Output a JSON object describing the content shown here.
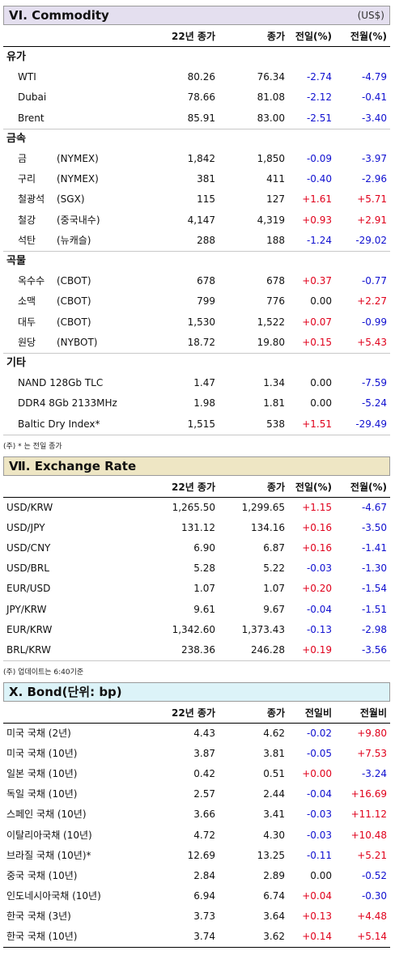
{
  "commodity": {
    "title": "VI. Commodity",
    "unit": "(US$)",
    "headers": [
      "22년 종가",
      "종가",
      "전일(%)",
      "전월(%)"
    ],
    "categories": [
      {
        "label": "유가",
        "rows": [
          {
            "name": "WTI",
            "exchange": "",
            "y22": "80.26",
            "close": "76.34",
            "d1": "-2.74",
            "d1c": "neg",
            "m1": "-4.79",
            "m1c": "neg"
          },
          {
            "name": "Dubai",
            "exchange": "",
            "y22": "78.66",
            "close": "81.08",
            "d1": "-2.12",
            "d1c": "neg",
            "m1": "-0.41",
            "m1c": "neg"
          },
          {
            "name": "Brent",
            "exchange": "",
            "y22": "85.91",
            "close": "83.00",
            "d1": "-2.51",
            "d1c": "neg",
            "m1": "-3.40",
            "m1c": "neg"
          }
        ]
      },
      {
        "label": "금속",
        "rows": [
          {
            "name": "금",
            "exchange": "(NYMEX)",
            "y22": "1,842",
            "close": "1,850",
            "d1": "-0.09",
            "d1c": "neg",
            "m1": "-3.97",
            "m1c": "neg"
          },
          {
            "name": "구리",
            "exchange": "(NYMEX)",
            "y22": "381",
            "close": "411",
            "d1": "-0.40",
            "d1c": "neg",
            "m1": "-2.96",
            "m1c": "neg"
          },
          {
            "name": "철광석",
            "exchange": "(SGX)",
            "y22": "115",
            "close": "127",
            "d1": "+1.61",
            "d1c": "pos",
            "m1": "+5.71",
            "m1c": "pos"
          },
          {
            "name": "철강",
            "exchange": "(중국내수)",
            "y22": "4,147",
            "close": "4,319",
            "d1": "+0.93",
            "d1c": "pos",
            "m1": "+2.91",
            "m1c": "pos"
          },
          {
            "name": "석탄",
            "exchange": "(뉴캐슬)",
            "y22": "288",
            "close": "188",
            "d1": "-1.24",
            "d1c": "neg",
            "m1": "-29.02",
            "m1c": "neg"
          }
        ]
      },
      {
        "label": "곡물",
        "rows": [
          {
            "name": "옥수수",
            "exchange": "(CBOT)",
            "y22": "678",
            "close": "678",
            "d1": "+0.37",
            "d1c": "pos",
            "m1": "-0.77",
            "m1c": "neg"
          },
          {
            "name": "소맥",
            "exchange": "(CBOT)",
            "y22": "799",
            "close": "776",
            "d1": "0.00",
            "d1c": "zero",
            "m1": "+2.27",
            "m1c": "pos"
          },
          {
            "name": "대두",
            "exchange": "(CBOT)",
            "y22": "1,530",
            "close": "1,522",
            "d1": "+0.07",
            "d1c": "pos",
            "m1": "-0.99",
            "m1c": "neg"
          },
          {
            "name": "원당",
            "exchange": "(NYBOT)",
            "y22": "18.72",
            "close": "19.80",
            "d1": "+0.15",
            "d1c": "pos",
            "m1": "+5.43",
            "m1c": "pos"
          }
        ]
      },
      {
        "label": "기타",
        "rows": [
          {
            "name": "NAND 128Gb TLC",
            "exchange": "",
            "y22": "1.47",
            "close": "1.34",
            "d1": "0.00",
            "d1c": "zero",
            "m1": "-7.59",
            "m1c": "neg"
          },
          {
            "name": "DDR4 8Gb 2133MHz",
            "exchange": "",
            "y22": "1.98",
            "close": "1.81",
            "d1": "0.00",
            "d1c": "zero",
            "m1": "-5.24",
            "m1c": "neg"
          },
          {
            "name": "Baltic Dry Index*",
            "exchange": "",
            "y22": "1,515",
            "close": "538",
            "d1": "+1.51",
            "d1c": "pos",
            "m1": "-29.49",
            "m1c": "neg"
          }
        ]
      }
    ],
    "note": "(주) * 는 전일 종가"
  },
  "exchange": {
    "title": "Ⅶ. Exchange Rate",
    "headers": [
      "22년 종가",
      "종가",
      "전일(%)",
      "전월(%)"
    ],
    "rows": [
      {
        "name": "USD/KRW",
        "y22": "1,265.50",
        "close": "1,299.65",
        "d1": "+1.15",
        "d1c": "pos",
        "m1": "-4.67",
        "m1c": "neg"
      },
      {
        "name": "USD/JPY",
        "y22": "131.12",
        "close": "134.16",
        "d1": "+0.16",
        "d1c": "pos",
        "m1": "-3.50",
        "m1c": "neg"
      },
      {
        "name": "USD/CNY",
        "y22": "6.90",
        "close": "6.87",
        "d1": "+0.16",
        "d1c": "pos",
        "m1": "-1.41",
        "m1c": "neg"
      },
      {
        "name": "USD/BRL",
        "y22": "5.28",
        "close": "5.22",
        "d1": "-0.03",
        "d1c": "neg",
        "m1": "-1.30",
        "m1c": "neg"
      },
      {
        "name": "EUR/USD",
        "y22": "1.07",
        "close": "1.07",
        "d1": "+0.20",
        "d1c": "pos",
        "m1": "-1.54",
        "m1c": "neg"
      },
      {
        "name": "JPY/KRW",
        "y22": "9.61",
        "close": "9.67",
        "d1": "-0.04",
        "d1c": "neg",
        "m1": "-1.51",
        "m1c": "neg"
      },
      {
        "name": "EUR/KRW",
        "y22": "1,342.60",
        "close": "1,373.43",
        "d1": "-0.13",
        "d1c": "neg",
        "m1": "-2.98",
        "m1c": "neg"
      },
      {
        "name": "BRL/KRW",
        "y22": "238.36",
        "close": "246.28",
        "d1": "+0.19",
        "d1c": "pos",
        "m1": "-3.56",
        "m1c": "neg"
      }
    ],
    "note": "(주) 업데이트는 6:40기준"
  },
  "bond": {
    "title": "X. Bond(단위: bp)",
    "headers": [
      "22년 종가",
      "종가",
      "전일비",
      "전월비"
    ],
    "rows": [
      {
        "name": "미국 국채 (2년)",
        "y22": "4.43",
        "close": "4.62",
        "d1": "-0.02",
        "d1c": "neg",
        "m1": "+9.80",
        "m1c": "pos"
      },
      {
        "name": "미국 국채 (10년)",
        "y22": "3.87",
        "close": "3.81",
        "d1": "-0.05",
        "d1c": "neg",
        "m1": "+7.53",
        "m1c": "pos"
      },
      {
        "name": "일본 국채 (10년)",
        "y22": "0.42",
        "close": "0.51",
        "d1": "+0.00",
        "d1c": "pos",
        "m1": "-3.24",
        "m1c": "neg"
      },
      {
        "name": "독일 국채 (10년)",
        "y22": "2.57",
        "close": "2.44",
        "d1": "-0.04",
        "d1c": "neg",
        "m1": "+16.69",
        "m1c": "pos"
      },
      {
        "name": "스페인 국채 (10년)",
        "y22": "3.66",
        "close": "3.41",
        "d1": "-0.03",
        "d1c": "neg",
        "m1": "+11.12",
        "m1c": "pos"
      },
      {
        "name": "이탈리아국채 (10년)",
        "y22": "4.72",
        "close": "4.30",
        "d1": "-0.03",
        "d1c": "neg",
        "m1": "+10.48",
        "m1c": "pos"
      },
      {
        "name": "브라질 국채 (10년)*",
        "y22": "12.69",
        "close": "13.25",
        "d1": "-0.11",
        "d1c": "neg",
        "m1": "+5.21",
        "m1c": "pos"
      },
      {
        "name": "중국 국채 (10년)",
        "y22": "2.84",
        "close": "2.89",
        "d1": "0.00",
        "d1c": "zero",
        "m1": "-0.52",
        "m1c": "neg"
      },
      {
        "name": "인도네시아국채 (10년)",
        "y22": "6.94",
        "close": "6.74",
        "d1": "+0.04",
        "d1c": "pos",
        "m1": "-0.30",
        "m1c": "neg"
      },
      {
        "name": "한국 국채 (3년)",
        "y22": "3.73",
        "close": "3.64",
        "d1": "+0.13",
        "d1c": "pos",
        "m1": "+4.48",
        "m1c": "pos"
      },
      {
        "name": "한국 국채 (10년)",
        "y22": "3.74",
        "close": "3.62",
        "d1": "+0.14",
        "d1c": "pos",
        "m1": "+5.14",
        "m1c": "pos"
      }
    ]
  }
}
